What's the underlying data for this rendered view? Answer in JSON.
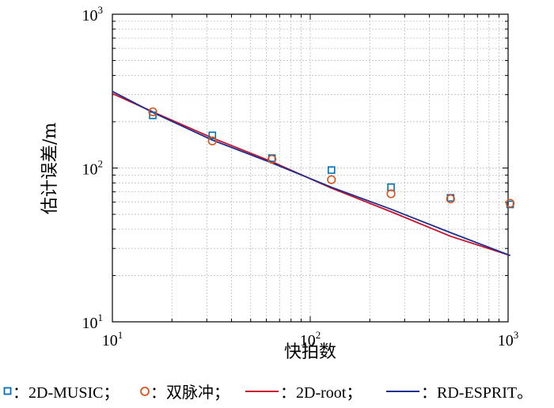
{
  "chart_data": {
    "type": "line",
    "xscale": "log",
    "yscale": "log",
    "xlim": [
      10,
      1000
    ],
    "ylim": [
      10,
      1000
    ],
    "xlabel": "快拍数",
    "ylabel": "估计误差/m",
    "grid": true,
    "x_ticks": [
      {
        "value": 10,
        "base": "10",
        "exp": "1"
      },
      {
        "value": 100,
        "base": "10",
        "exp": "2"
      },
      {
        "value": 1000,
        "base": "10",
        "exp": "3"
      }
    ],
    "y_ticks": [
      {
        "value": 10,
        "base": "10",
        "exp": "1"
      },
      {
        "value": 100,
        "base": "10",
        "exp": "2"
      },
      {
        "value": 1000,
        "base": "10",
        "exp": "3"
      }
    ],
    "series": [
      {
        "name": "2D-MUSIC",
        "kind": "marker",
        "marker": "square",
        "color": "#0072BD",
        "x": [
          16,
          32,
          64,
          128,
          256,
          512,
          1024
        ],
        "y": [
          220,
          163,
          116,
          97,
          75,
          64,
          58
        ]
      },
      {
        "name": "双脉冲",
        "kind": "marker",
        "marker": "circle",
        "color": "#D95319",
        "x": [
          16,
          32,
          64,
          128,
          256,
          512,
          1024
        ],
        "y": [
          232,
          150,
          114,
          84,
          68,
          63,
          59
        ]
      },
      {
        "name": "2D-root",
        "kind": "line",
        "color": "#C8102E",
        "x": [
          10,
          16,
          32,
          64,
          128,
          256,
          512,
          1024
        ],
        "y": [
          305,
          232,
          157,
          110,
          74,
          52,
          36,
          27
        ]
      },
      {
        "name": "RD-ESPRIT",
        "kind": "line",
        "color": "#1F2F8C",
        "x": [
          10,
          16,
          32,
          64,
          128,
          256,
          512,
          1024
        ],
        "y": [
          315,
          230,
          152,
          108,
          75,
          54,
          38,
          27
        ]
      }
    ]
  },
  "legend": {
    "items": [
      {
        "marker": "square",
        "label": "：2D-MUSIC；"
      },
      {
        "marker": "circle",
        "label": "：双脉冲；"
      },
      {
        "marker": "line-red",
        "label": "：2D-root；"
      },
      {
        "marker": "line-blue",
        "label": "：RD-ESPRIT。"
      }
    ]
  }
}
